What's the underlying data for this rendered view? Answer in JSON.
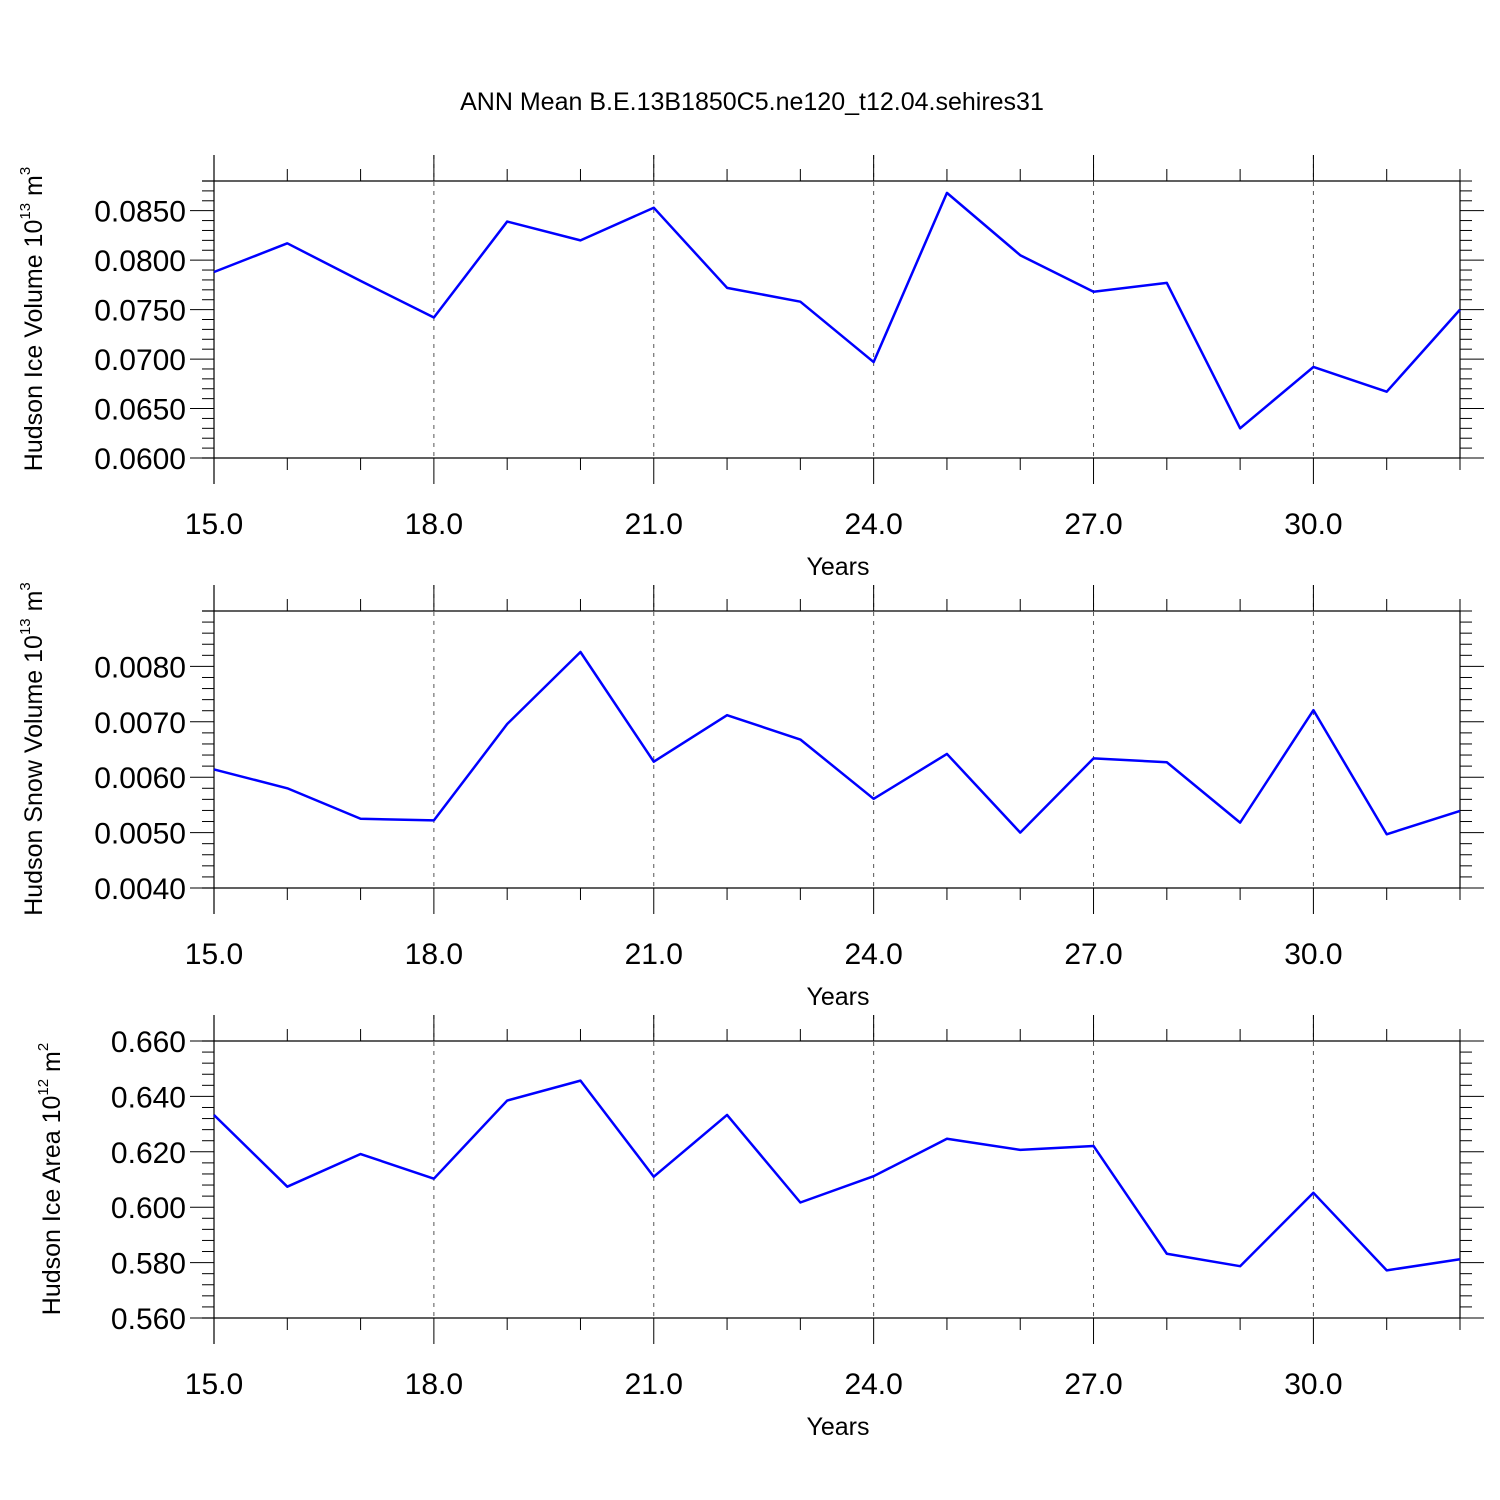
{
  "figure": {
    "title": "ANN Mean B.E.13B1850C5.ne120_t12.04.sehires31"
  },
  "chart_data": [
    {
      "type": "line",
      "xlabel": "Years",
      "ylabel": {
        "text": "Hudson Ice Volume 10",
        "exp": "13",
        "unit": " m",
        "unit_exp": "3"
      },
      "xlim": [
        15,
        32
      ],
      "ylim": [
        0.06,
        0.088
      ],
      "xticks": [
        15,
        18,
        21,
        24,
        27,
        30
      ],
      "xtick_labels": [
        "15.0",
        "18.0",
        "21.0",
        "24.0",
        "27.0",
        "30.0"
      ],
      "yticks": [
        0.06,
        0.065,
        0.07,
        0.075,
        0.08,
        0.085
      ],
      "ytick_labels": [
        "0.0600",
        "0.0650",
        "0.0700",
        "0.0750",
        "0.0800",
        "0.0850"
      ],
      "grid": "x dashed",
      "line_color": "#0000ff",
      "x": [
        15,
        16,
        17,
        18,
        19,
        20,
        21,
        22,
        23,
        24,
        25,
        26,
        27,
        28,
        29,
        30,
        31,
        32
      ],
      "values": [
        0.0788,
        0.0817,
        0.0779,
        0.0742,
        0.0839,
        0.082,
        0.0853,
        0.0772,
        0.0758,
        0.0697,
        0.0868,
        0.0805,
        0.0768,
        0.0777,
        0.063,
        0.0692,
        0.0667,
        0.075
      ]
    },
    {
      "type": "line",
      "xlabel": "Years",
      "ylabel": {
        "text": "Hudson Snow Volume 10",
        "exp": "13",
        "unit": " m",
        "unit_exp": "3"
      },
      "xlim": [
        15,
        32
      ],
      "ylim": [
        0.004,
        0.009
      ],
      "xticks": [
        15,
        18,
        21,
        24,
        27,
        30
      ],
      "xtick_labels": [
        "15.0",
        "18.0",
        "21.0",
        "24.0",
        "27.0",
        "30.0"
      ],
      "yticks": [
        0.004,
        0.005,
        0.006,
        0.007,
        0.008
      ],
      "ytick_labels": [
        "0.0040",
        "0.0050",
        "0.0060",
        "0.0070",
        "0.0080"
      ],
      "grid": "x dashed",
      "line_color": "#0000ff",
      "x": [
        15,
        16,
        17,
        18,
        19,
        20,
        21,
        22,
        23,
        24,
        25,
        26,
        27,
        28,
        29,
        30,
        31,
        32
      ],
      "values": [
        0.00614,
        0.0058,
        0.00525,
        0.00522,
        0.00696,
        0.00826,
        0.00628,
        0.00712,
        0.00668,
        0.00561,
        0.00642,
        0.005,
        0.00634,
        0.00627,
        0.00518,
        0.00721,
        0.00497,
        0.00539
      ]
    },
    {
      "type": "line",
      "xlabel": "Years",
      "ylabel": {
        "text": "Hudson Ice Area 10",
        "exp": "12",
        "unit": " m",
        "unit_exp": "2"
      },
      "xlim": [
        15,
        32
      ],
      "ylim": [
        0.56,
        0.66
      ],
      "xticks": [
        15,
        18,
        21,
        24,
        27,
        30
      ],
      "xtick_labels": [
        "15.0",
        "18.0",
        "21.0",
        "24.0",
        "27.0",
        "30.0"
      ],
      "yticks": [
        0.56,
        0.58,
        0.6,
        0.62,
        0.64,
        0.66
      ],
      "ytick_labels": [
        "0.560",
        "0.580",
        "0.600",
        "0.620",
        "0.640",
        "0.660"
      ],
      "grid": "x dashed",
      "line_color": "#0000ff",
      "x": [
        15,
        16,
        17,
        18,
        19,
        20,
        21,
        22,
        23,
        24,
        25,
        26,
        27,
        28,
        29,
        30,
        31,
        32
      ],
      "values": [
        0.6333,
        0.6074,
        0.6192,
        0.6103,
        0.6385,
        0.6457,
        0.611,
        0.6333,
        0.6017,
        0.6112,
        0.6247,
        0.6207,
        0.6221,
        0.5832,
        0.5787,
        0.6052,
        0.5772,
        0.5812
      ]
    }
  ]
}
